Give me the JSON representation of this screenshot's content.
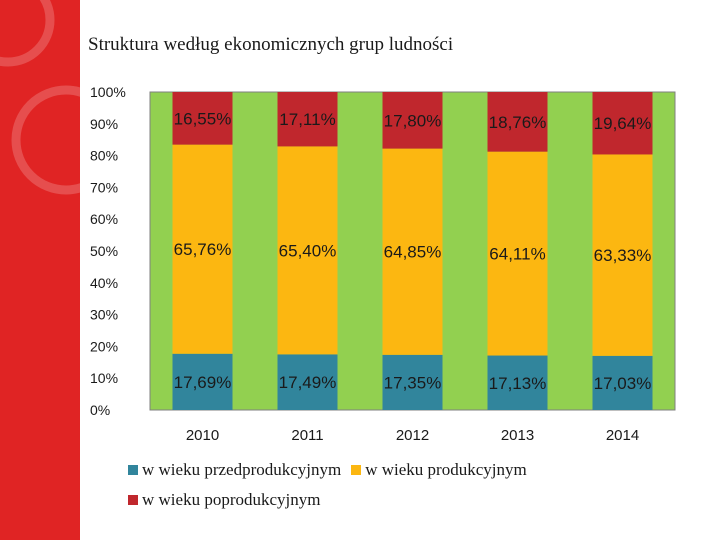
{
  "slide": {
    "title": "Struktura według ekonomicznych grup ludności",
    "accent_color": "#e02424"
  },
  "chart_data": {
    "type": "bar",
    "stacked": true,
    "title": "",
    "xlabel": "",
    "ylabel": "",
    "ylim": [
      0,
      100
    ],
    "y_ticks": [
      "0%",
      "10%",
      "20%",
      "30%",
      "40%",
      "50%",
      "60%",
      "70%",
      "80%",
      "90%",
      "100%"
    ],
    "grid": false,
    "categories": [
      "2010",
      "2011",
      "2012",
      "2013",
      "2014"
    ],
    "series": [
      {
        "name": "w wieku przedprodukcyjnym",
        "color": "#31859c",
        "values": [
          17.69,
          17.49,
          17.35,
          17.13,
          17.03
        ],
        "labels": [
          "17,69%",
          "17,49%",
          "17,35%",
          "17,13%",
          "17,03%"
        ]
      },
      {
        "name": "w wieku produkcyjnym",
        "color": "#fcb711",
        "values": [
          65.76,
          65.4,
          64.85,
          64.11,
          63.33
        ],
        "labels": [
          "65,76%",
          "65,40%",
          "64,85%",
          "64,11%",
          "63,33%"
        ]
      },
      {
        "name": "w wieku poprodukcyjnym",
        "color": "#c0272d",
        "values": [
          16.55,
          17.11,
          17.8,
          18.76,
          19.64
        ],
        "labels": [
          "16,55%",
          "17,11%",
          "17,80%",
          "18,76%",
          "19,64%"
        ]
      }
    ],
    "plot_background": "#92d050",
    "legend_position": "bottom"
  }
}
